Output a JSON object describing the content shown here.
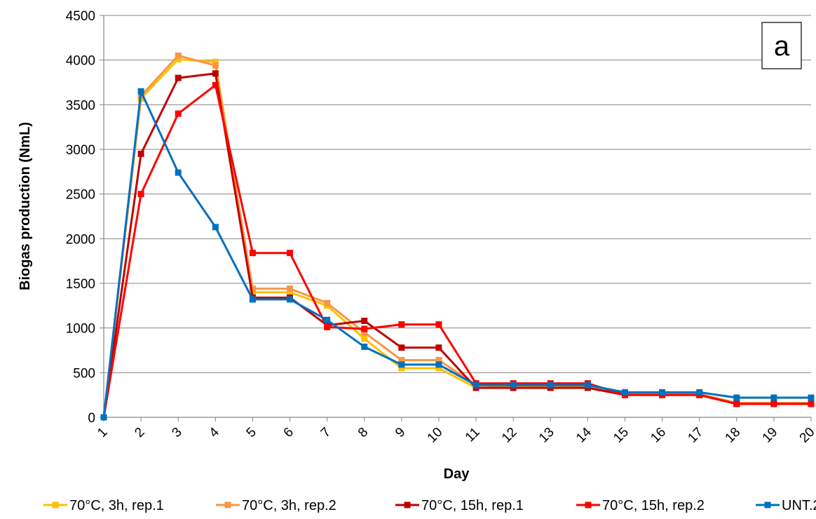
{
  "chart_data": {
    "type": "line",
    "panel_label": "a",
    "xlabel": "Day",
    "ylabel": "Biogas production (NmL)",
    "ylim": [
      0,
      4500
    ],
    "yticks": [
      0,
      500,
      1000,
      1500,
      2000,
      2500,
      3000,
      3500,
      4000,
      4500
    ],
    "categories": [
      "1",
      "2",
      "3",
      "4",
      "5",
      "6",
      "7",
      "8",
      "9",
      "10",
      "11",
      "12",
      "13",
      "14",
      "15",
      "16",
      "17",
      "18",
      "19",
      "20"
    ],
    "grid": "horizontal",
    "legend_position": "bottom",
    "series": [
      {
        "name": "70°C, 3h, rep.1",
        "color": "#FFC000",
        "values": [
          0,
          3570,
          4010,
          3980,
          1400,
          1400,
          1250,
          880,
          550,
          550,
          330,
          350,
          350,
          350,
          260,
          260,
          260,
          160,
          160,
          160
        ]
      },
      {
        "name": "70°C, 3h, rep.2",
        "color": "#F79646",
        "values": [
          0,
          3600,
          4050,
          3940,
          1440,
          1440,
          1280,
          950,
          640,
          640,
          360,
          360,
          360,
          360,
          260,
          260,
          260,
          160,
          160,
          160
        ]
      },
      {
        "name": "70°C, 15h, rep.1",
        "color": "#C00000",
        "values": [
          0,
          2950,
          3800,
          3850,
          1340,
          1340,
          1030,
          1080,
          780,
          780,
          330,
          330,
          330,
          330,
          250,
          250,
          250,
          150,
          150,
          150
        ]
      },
      {
        "name": "70°C, 15h, rep.2",
        "color": "#FF0000",
        "values": [
          0,
          2500,
          3400,
          3720,
          1840,
          1840,
          1010,
          990,
          1040,
          1040,
          380,
          380,
          380,
          380,
          250,
          250,
          250,
          150,
          150,
          150
        ]
      },
      {
        "name": "UNT.2",
        "color": "#0070C0",
        "values": [
          0,
          3650,
          2740,
          2130,
          1320,
          1320,
          1090,
          790,
          590,
          590,
          360,
          360,
          360,
          360,
          280,
          280,
          280,
          220,
          220,
          220
        ]
      }
    ]
  }
}
